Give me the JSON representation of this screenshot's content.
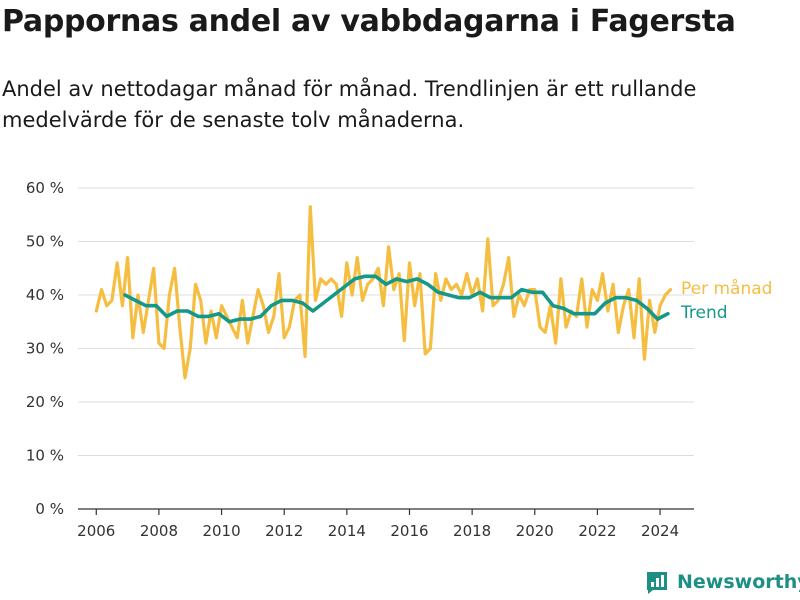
{
  "title": "Pappornas andel av vabbdagarna i Fagersta",
  "subtitle": "Andel av nettodagar månad för månad. Trendlinjen är ett rullande medelvärde för de senaste tolv månaderna.",
  "brand": "Newsworthy",
  "colors": {
    "monthly": "#f5be41",
    "trend": "#14988a",
    "brand": "#1d8f84",
    "grid": "#dddddd",
    "axis": "#333333"
  },
  "chart_data": {
    "type": "line",
    "xlabel": "",
    "ylabel": "",
    "x_ticks": [
      "2006",
      "2008",
      "2010",
      "2012",
      "2014",
      "2016",
      "2018",
      "2020",
      "2022",
      "2024"
    ],
    "y_ticks": [
      "0 %",
      "10 %",
      "20 %",
      "30 %",
      "40 %",
      "50 %",
      "60 %"
    ],
    "xlim": [
      "2005-06",
      "2025-02"
    ],
    "ylim": [
      0,
      60
    ],
    "grid": true,
    "legend": "right, end of lines",
    "series": [
      {
        "name": "Per månad",
        "x": [
          "2006-01",
          "2006-03",
          "2006-05",
          "2006-07",
          "2006-09",
          "2006-11",
          "2007-01",
          "2007-03",
          "2007-05",
          "2007-07",
          "2007-09",
          "2007-11",
          "2008-01",
          "2008-03",
          "2008-05",
          "2008-07",
          "2008-09",
          "2008-11",
          "2009-01",
          "2009-03",
          "2009-05",
          "2009-07",
          "2009-09",
          "2009-11",
          "2010-01",
          "2010-03",
          "2010-05",
          "2010-07",
          "2010-09",
          "2010-11",
          "2011-01",
          "2011-03",
          "2011-05",
          "2011-07",
          "2011-09",
          "2011-11",
          "2012-01",
          "2012-03",
          "2012-05",
          "2012-07",
          "2012-09",
          "2012-11",
          "2013-01",
          "2013-03",
          "2013-05",
          "2013-07",
          "2013-09",
          "2013-11",
          "2014-01",
          "2014-03",
          "2014-05",
          "2014-07",
          "2014-09",
          "2014-11",
          "2015-01",
          "2015-03",
          "2015-05",
          "2015-07",
          "2015-09",
          "2015-11",
          "2016-01",
          "2016-03",
          "2016-05",
          "2016-07",
          "2016-09",
          "2016-11",
          "2017-01",
          "2017-03",
          "2017-05",
          "2017-07",
          "2017-09",
          "2017-11",
          "2018-01",
          "2018-03",
          "2018-05",
          "2018-07",
          "2018-09",
          "2018-11",
          "2019-01",
          "2019-03",
          "2019-05",
          "2019-07",
          "2019-09",
          "2019-11",
          "2020-01",
          "2020-03",
          "2020-05",
          "2020-07",
          "2020-09",
          "2020-11",
          "2021-01",
          "2021-03",
          "2021-05",
          "2021-07",
          "2021-09",
          "2021-11",
          "2022-01",
          "2022-03",
          "2022-05",
          "2022-07",
          "2022-09",
          "2022-11",
          "2023-01",
          "2023-03",
          "2023-05",
          "2023-07",
          "2023-09",
          "2023-11",
          "2024-01",
          "2024-03",
          "2024-05"
        ],
        "values": [
          37,
          41,
          38,
          39,
          46,
          38,
          47,
          32,
          40,
          33,
          39,
          45,
          31,
          30,
          40,
          45,
          34,
          24.5,
          30,
          42,
          39,
          31,
          37,
          32,
          38,
          36,
          34,
          32,
          39,
          31,
          36,
          41,
          38,
          33,
          36,
          44,
          32,
          34,
          39,
          40,
          28.5,
          56.5,
          39,
          43,
          42,
          43,
          42,
          36,
          46,
          40,
          47,
          39,
          42,
          43,
          45,
          38,
          49,
          41,
          44,
          31.5,
          46,
          38,
          44,
          29,
          30,
          44,
          39,
          43,
          41,
          42,
          40,
          44,
          40,
          43,
          37,
          50.5,
          38,
          39,
          42,
          47,
          36,
          40,
          38,
          41,
          41,
          34,
          33,
          38,
          31,
          43,
          34,
          37,
          36,
          43,
          34,
          41,
          39,
          44,
          37,
          42,
          33,
          38,
          41,
          32,
          43,
          28,
          39,
          33,
          38,
          40,
          41
        ]
      },
      {
        "name": "Trend",
        "x": [
          "2006-12",
          "2007-04",
          "2007-08",
          "2007-12",
          "2008-04",
          "2008-08",
          "2008-12",
          "2009-04",
          "2009-08",
          "2009-12",
          "2010-04",
          "2010-08",
          "2010-12",
          "2011-04",
          "2011-08",
          "2011-12",
          "2012-04",
          "2012-08",
          "2012-12",
          "2013-04",
          "2013-08",
          "2013-12",
          "2014-04",
          "2014-08",
          "2014-12",
          "2015-04",
          "2015-08",
          "2015-12",
          "2016-04",
          "2016-08",
          "2016-12",
          "2017-04",
          "2017-08",
          "2017-12",
          "2018-04",
          "2018-08",
          "2018-12",
          "2019-04",
          "2019-08",
          "2019-12",
          "2020-04",
          "2020-08",
          "2020-12",
          "2021-04",
          "2021-08",
          "2021-12",
          "2022-04",
          "2022-08",
          "2022-12",
          "2023-04",
          "2023-08",
          "2023-12",
          "2024-04"
        ],
        "values": [
          40,
          39,
          38,
          38,
          36,
          37,
          37,
          36,
          36,
          36.5,
          35,
          35.5,
          35.5,
          36,
          38,
          39,
          39,
          38.5,
          37,
          38.5,
          40,
          41.5,
          43,
          43.5,
          43.5,
          42,
          43,
          42.5,
          43,
          42,
          40.5,
          40,
          39.5,
          39.5,
          40.5,
          39.5,
          39.5,
          39.5,
          41,
          40.5,
          40.5,
          38,
          37.5,
          36.5,
          36.5,
          36.5,
          38.5,
          39.5,
          39.5,
          39,
          37.5,
          35.5,
          36.5
        ]
      }
    ]
  }
}
